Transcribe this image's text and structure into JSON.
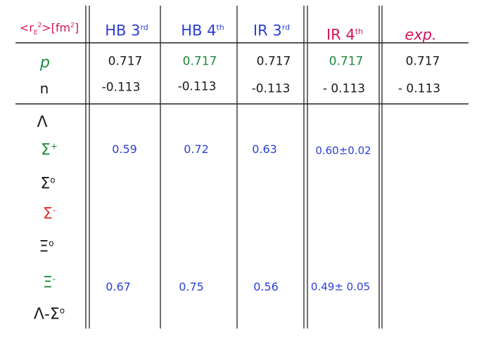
{
  "header": {
    "quantity": {
      "base": "<r",
      "sub": "E",
      "sup": "2",
      "rest": ">[fm",
      "unit_sup": "2",
      "close": "]"
    },
    "columns": [
      {
        "base": "HB 3",
        "sup": "rd"
      },
      {
        "base": "HB 4",
        "sup": "th"
      },
      {
        "base": "IR 3",
        "sup": "rd"
      },
      {
        "base": "IR 4",
        "sup": "th"
      },
      {
        "base": "exp.",
        "sup": ""
      }
    ]
  },
  "nucleon_rows": [
    {
      "label": "p",
      "values": [
        "0.717",
        "0.717",
        "0.717",
        "0.717",
        "0.717"
      ]
    },
    {
      "label": "n",
      "values": [
        "-0.113",
        "-0.113",
        "-0.113",
        "- 0.113",
        "- 0.113"
      ]
    }
  ],
  "baryon_rows": [
    {
      "label": "Λ",
      "sup": "",
      "values": [
        "",
        "",
        "",
        "",
        ""
      ]
    },
    {
      "label": "Σ",
      "sup": "+",
      "values": [
        "0.59",
        "0.72",
        "0.63",
        "0.60±0.02",
        ""
      ]
    },
    {
      "label": "Σ",
      "sup": "o",
      "values": [
        "",
        "",
        "",
        "",
        ""
      ]
    },
    {
      "label": "Σ",
      "sup": "-",
      "values": [
        "",
        "",
        "",
        "",
        ""
      ]
    },
    {
      "label": "Ξ",
      "sup": "o",
      "values": [
        "",
        "",
        "",
        "",
        ""
      ]
    },
    {
      "label": "Ξ",
      "sup": "-",
      "values": [
        "0.67",
        "0.75",
        "0.56",
        "0.49± 0.05",
        ""
      ]
    },
    {
      "label": "Λ-Σ",
      "sup": "o",
      "values": [
        "",
        "",
        "",
        "",
        ""
      ]
    }
  ],
  "colors": {
    "header_quantity": "#d4145a",
    "header_theory": "#2b3fd6",
    "header_exp": "#d4145a",
    "green_ink": "#1c8a3c",
    "blue_values": "#2b3fd6",
    "red_ink": "#e0312f",
    "black_ink": "#1a1a1a"
  }
}
